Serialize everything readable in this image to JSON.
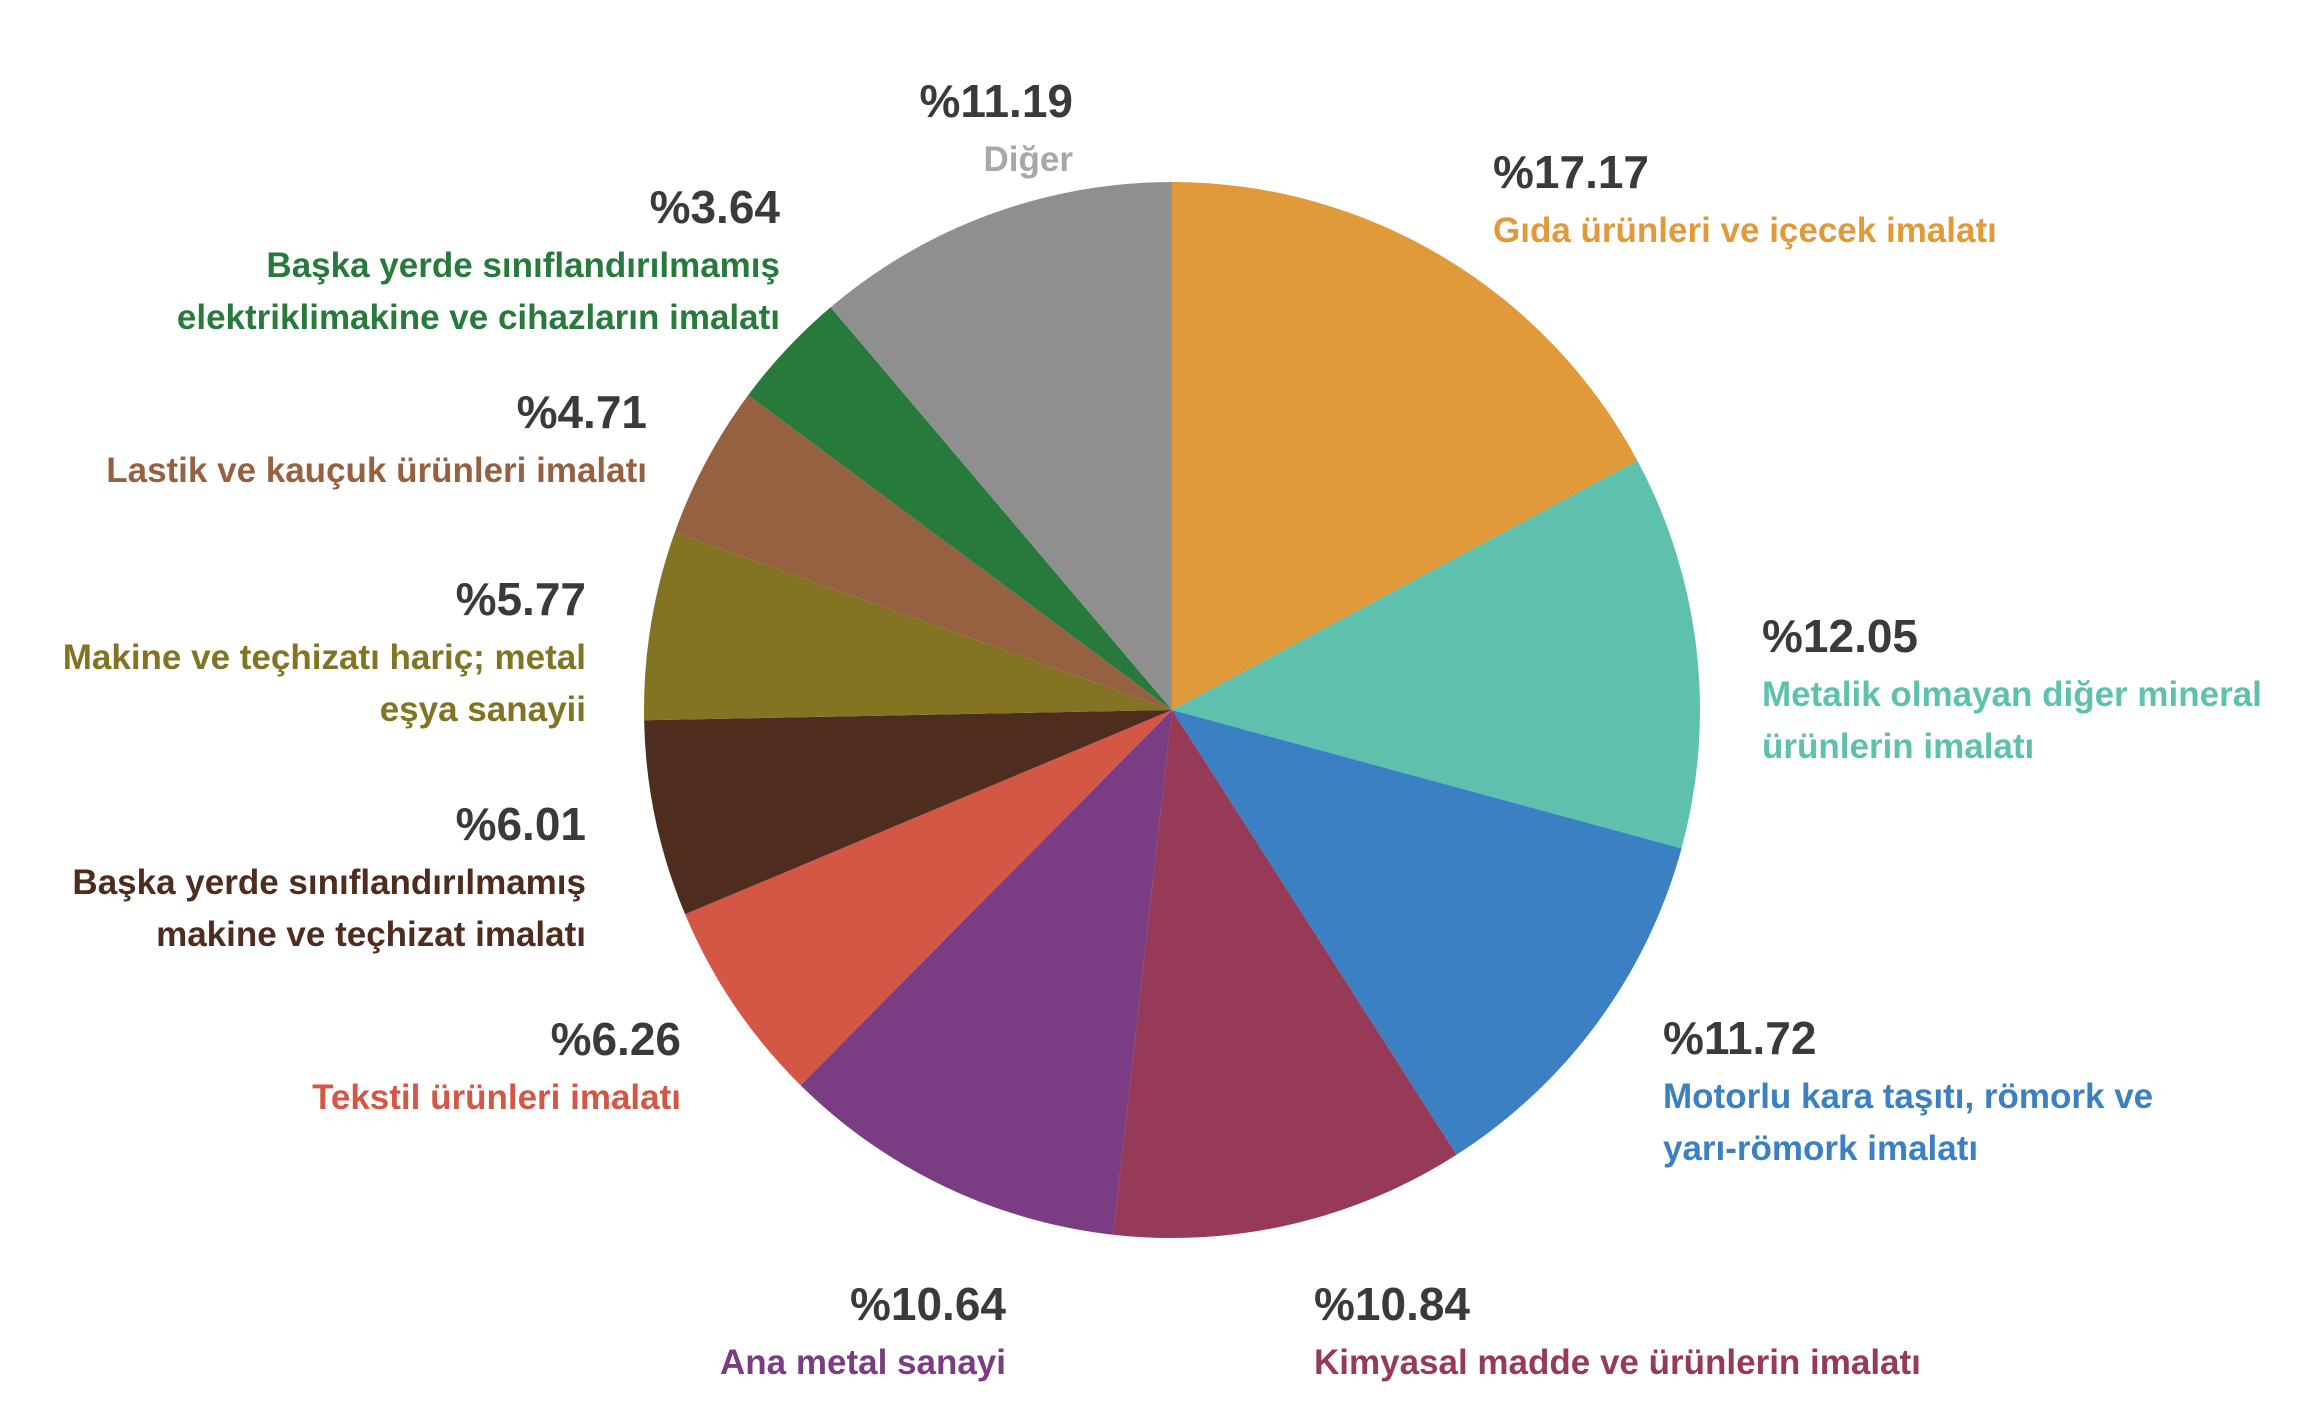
{
  "chart_data": {
    "type": "pie",
    "title": "",
    "start_angle_deg": 0,
    "direction": "clockwise",
    "slices": [
      {
        "pct_text": "%17.17",
        "value": 17.17,
        "label_lines": [
          "Gıda ürünleri ve içecek imalatı"
        ],
        "color": "#E09A3A"
      },
      {
        "pct_text": "%12.05",
        "value": 12.05,
        "label_lines": [
          "Metalik olmayan diğer mineral",
          "ürünlerin imalatı"
        ],
        "color": "#5DC1AE"
      },
      {
        "pct_text": "%11.72",
        "value": 11.72,
        "label_lines": [
          "Motorlu kara taşıtı, römork ve",
          "yarı-römork imalatı"
        ],
        "color": "#3B80C3"
      },
      {
        "pct_text": "%10.84",
        "value": 10.84,
        "label_lines": [
          "Kimyasal madde ve ürünlerin imalatı"
        ],
        "color": "#963A57"
      },
      {
        "pct_text": "%10.64",
        "value": 10.64,
        "label_lines": [
          "Ana metal sanayi"
        ],
        "color": "#7A3C82"
      },
      {
        "pct_text": "%6.26",
        "value": 6.26,
        "label_lines": [
          "Tekstil ürünleri imalatı"
        ],
        "color": "#D45745"
      },
      {
        "pct_text": "%6.01",
        "value": 6.01,
        "label_lines": [
          "Başka yerde sınıflandırılmamış",
          "makine ve teçhizat imalatı"
        ],
        "color": "#4E2D1F"
      },
      {
        "pct_text": "%5.77",
        "value": 5.77,
        "label_lines": [
          "Makine ve teçhizatı hariç; metal",
          "eşya sanayii"
        ],
        "color": "#837423"
      },
      {
        "pct_text": "%4.71",
        "value": 4.71,
        "label_lines": [
          "Lastik ve kauçuk ürünleri imalatı"
        ],
        "color": "#966140"
      },
      {
        "pct_text": "%3.64",
        "value": 3.64,
        "label_lines": [
          "Başka yerde sınıflandırılmamış",
          "elektriklimakine ve cihazların imalatı"
        ],
        "color": "#277A3C"
      },
      {
        "pct_text": "%11.19",
        "value": 11.19,
        "label_lines": [
          "Diğer"
        ],
        "color": "#908F8F"
      }
    ],
    "label_colors": [
      "#E09A3A",
      "#5DC1AE",
      "#3B80C3",
      "#963A57",
      "#7A3C82",
      "#D45745",
      "#4E2D1F",
      "#837423",
      "#966140",
      "#277A3C",
      "#A7A7A7"
    ]
  }
}
